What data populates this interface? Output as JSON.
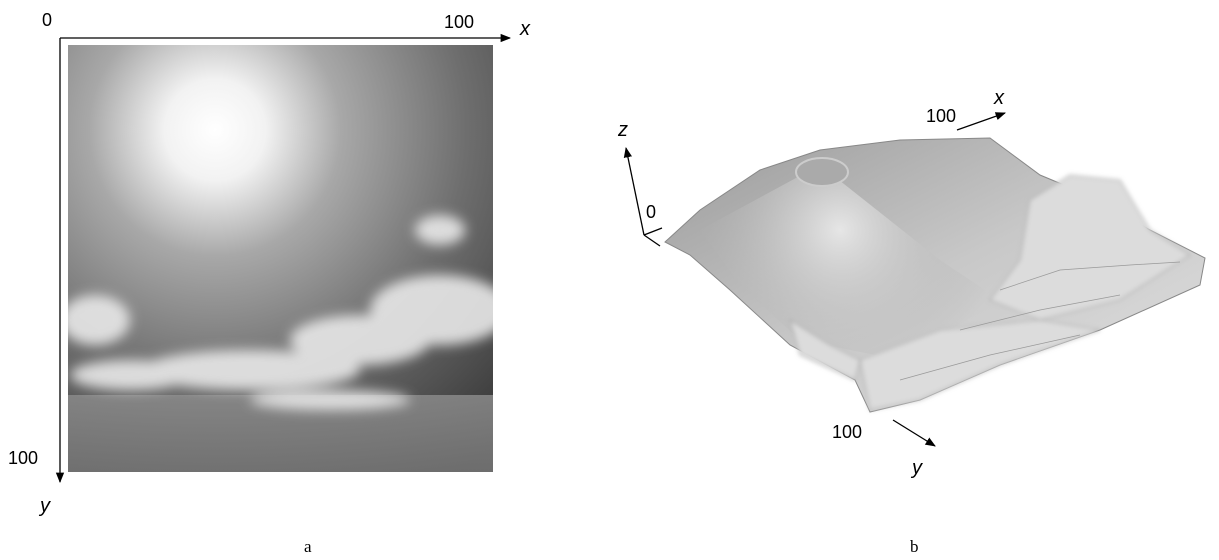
{
  "panels": [
    {
      "origin_label": "0",
      "x_max_label": "100",
      "x_axis": "x",
      "y_max_label": "100",
      "y_axis": "y",
      "caption": "a"
    },
    {
      "z_axis": "z",
      "origin_label": "0",
      "x_max_label": "100",
      "x_axis": "x",
      "y_max_label": "100",
      "y_axis": "y",
      "caption": "b"
    }
  ]
}
